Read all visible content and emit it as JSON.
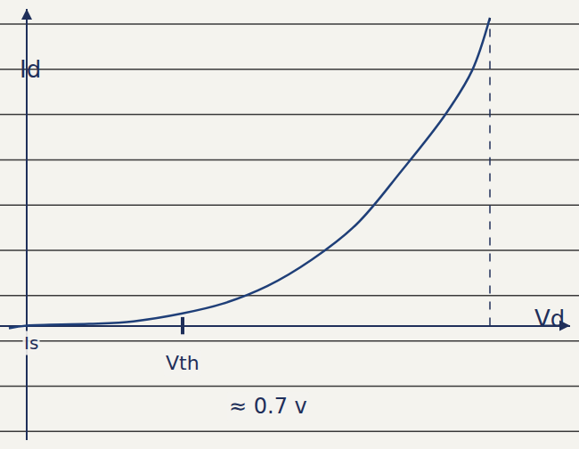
{
  "chart_data": {
    "type": "line",
    "x_label": "Vd",
    "y_label": "Id",
    "x": [
      -0.08,
      0,
      0.28,
      0.48,
      0.7,
      0.88,
      1.08,
      1.28,
      1.48,
      1.68,
      1.88,
      2.0,
      2.08
    ],
    "values": [
      -0.03,
      0,
      0.02,
      0.05,
      0.14,
      0.25,
      0.45,
      0.75,
      1.15,
      1.75,
      2.4,
      2.9,
      3.5
    ],
    "color": "#1f3f78",
    "line_style": "solid",
    "xlim": [
      -0.12,
      2.44
    ],
    "ylim": [
      -1.3,
      3.6
    ],
    "xticks": [],
    "yticks": [],
    "tick_labels": false,
    "grid": false,
    "annotations": [
      {
        "text": "Is",
        "x": 0.02,
        "y": -0.2
      },
      {
        "text": "Vth",
        "x": 0.7,
        "y": -0.42
      },
      {
        "text": "≈ 0.7 v",
        "x": 0.9,
        "y": -0.92
      }
    ]
  }
}
